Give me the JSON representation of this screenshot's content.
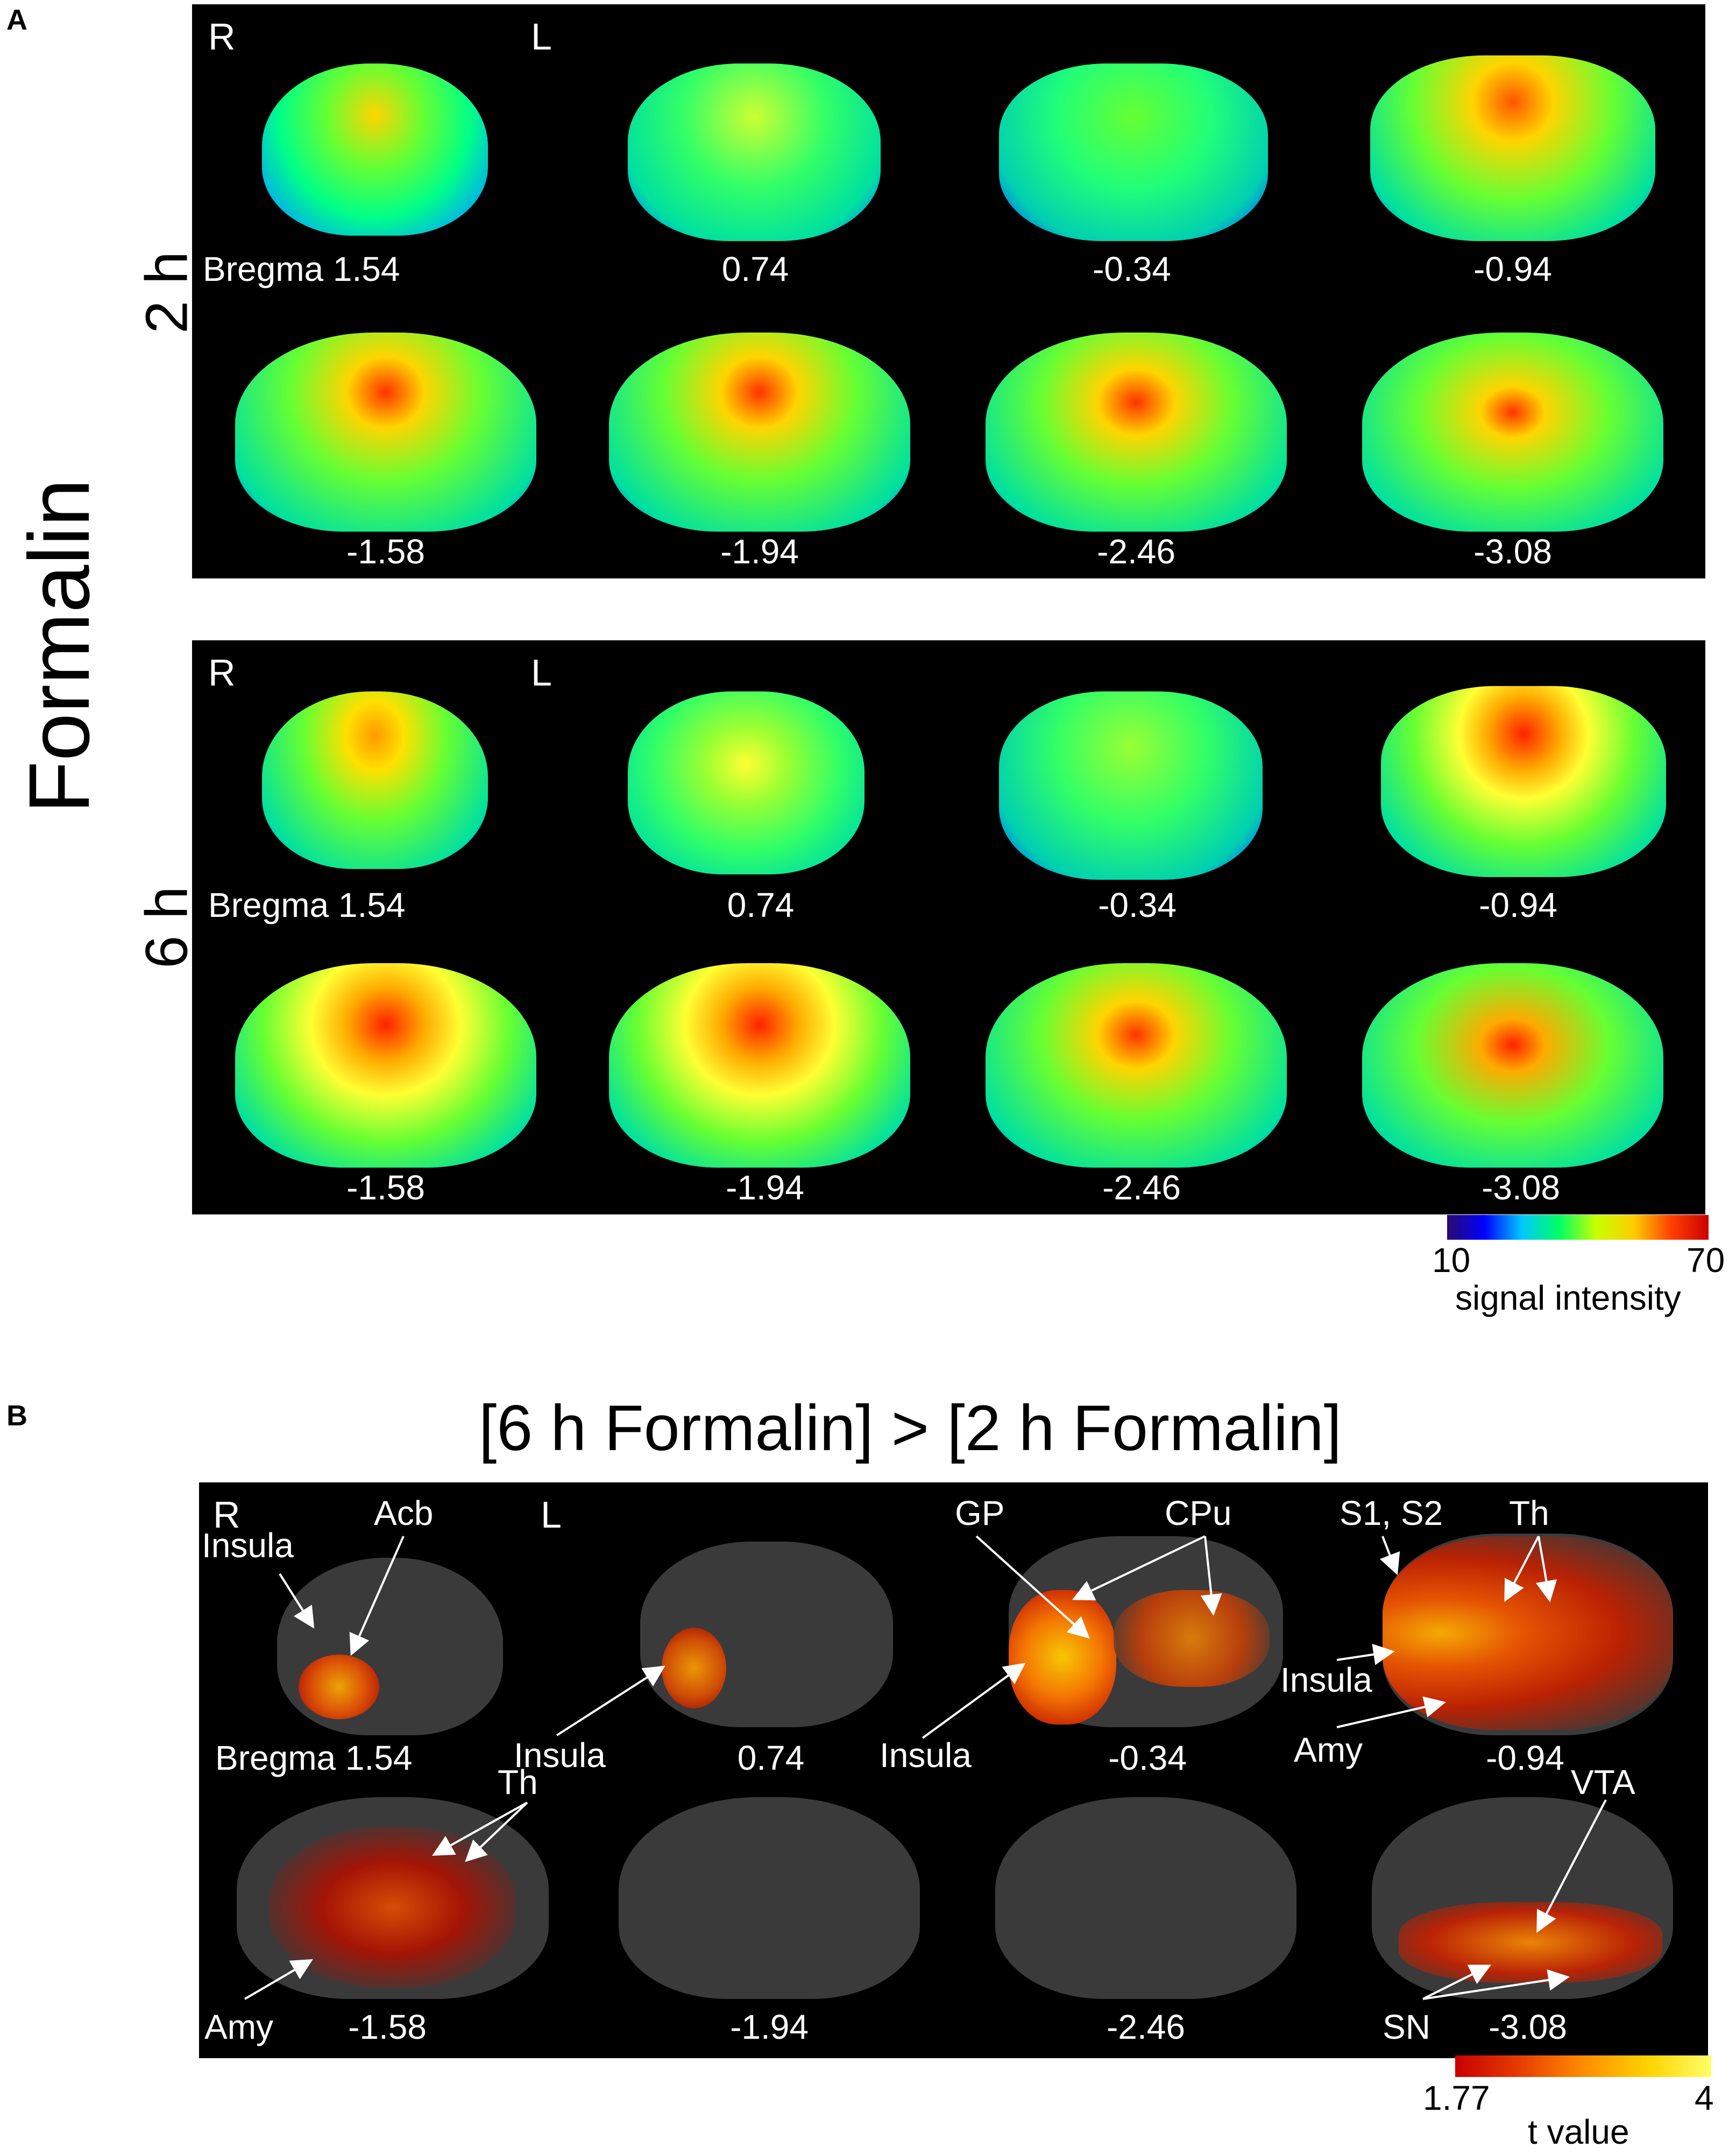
{
  "panel_a": {
    "letter": "A",
    "side_title": "Formalin",
    "hemisphere": {
      "right": "R",
      "left": "L"
    },
    "timepoints": [
      {
        "label": "2 h",
        "row1_labels": [
          "Bregma 1.54",
          "0.74",
          "-0.34",
          "-0.94"
        ],
        "row2_labels": [
          "-1.58",
          "-1.94",
          "-2.46",
          "-3.08"
        ]
      },
      {
        "label": "6 h",
        "row1_labels": [
          "Bregma 1.54",
          "0.74",
          "-0.34",
          "-0.94"
        ],
        "row2_labels": [
          "-1.58",
          "-1.94",
          "-2.46",
          "-3.08"
        ]
      }
    ],
    "colorbar": {
      "min": "10",
      "max": "70",
      "label": "signal intensity",
      "colors": [
        "#2a0a6e",
        "#0000ff",
        "#00c8ff",
        "#00ff66",
        "#c8ff00",
        "#ffcc00",
        "#ff4000",
        "#cc0000"
      ]
    }
  },
  "panel_b": {
    "letter": "B",
    "title": "[6 h Formalin] > [2 h Formalin]",
    "hemisphere": {
      "right": "R",
      "left": "L"
    },
    "row1_labels": [
      "Bregma 1.54",
      "0.74",
      "-0.34",
      "-0.94"
    ],
    "row2_labels": [
      "-1.58",
      "-1.94",
      "-2.46",
      "-3.08"
    ],
    "annotations": {
      "insula": "Insula",
      "acb": "Acb",
      "gp": "GP",
      "cpu": "CPu",
      "s1s2": "S1, S2",
      "th": "Th",
      "amy": "Amy",
      "vta": "VTA",
      "sn": "SN"
    },
    "colorbar": {
      "min": "1.77",
      "max": "4",
      "label": "t value",
      "colors": [
        "#c80000",
        "#e63c00",
        "#ff8c00",
        "#ffd200",
        "#ffff66"
      ]
    }
  }
}
